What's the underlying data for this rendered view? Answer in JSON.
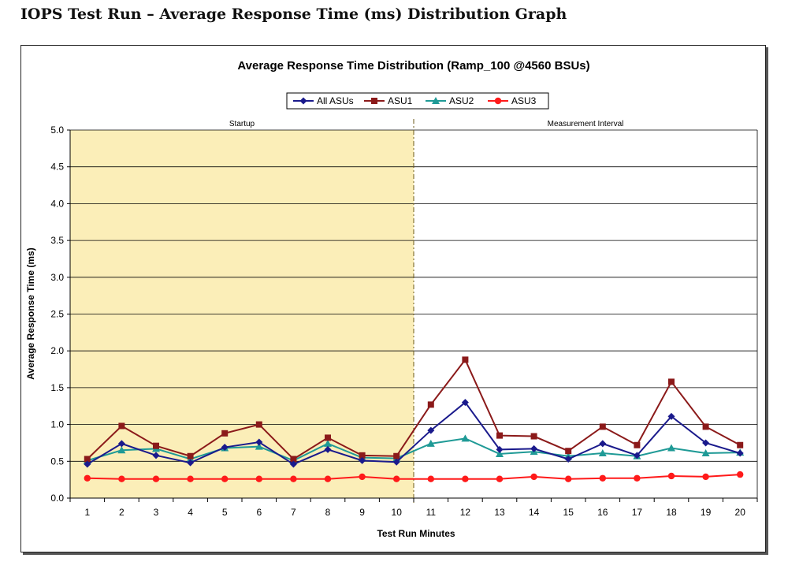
{
  "page": {
    "heading": "IOPS Test Run – Average Response Time (ms) Distribution Graph"
  },
  "chart_data": {
    "type": "line",
    "title": "Average Response Time Distribution (Ramp_100 @4560 BSUs)",
    "xlabel": "Test Run Minutes",
    "ylabel": "Average Response  Time (ms)",
    "x": [
      1,
      2,
      3,
      4,
      5,
      6,
      7,
      8,
      9,
      10,
      11,
      12,
      13,
      14,
      15,
      16,
      17,
      18,
      19,
      20
    ],
    "ylim": [
      0,
      5.0
    ],
    "yticks": [
      "0.0",
      "0.5",
      "1.0",
      "1.5",
      "2.0",
      "2.5",
      "3.0",
      "3.5",
      "4.0",
      "4.5",
      "5.0"
    ],
    "grid": true,
    "legend_position": "top-center",
    "regions": [
      {
        "label": "Startup",
        "from": 1,
        "to": 10,
        "color": "#fbeeb8"
      },
      {
        "label": "Measurement Interval",
        "from": 11,
        "to": 20,
        "color": "#ffffff"
      }
    ],
    "series": [
      {
        "name": "All ASUs",
        "color": "#1a1a8c",
        "marker": "diamond",
        "values": [
          0.46,
          0.74,
          0.58,
          0.48,
          0.69,
          0.76,
          0.46,
          0.66,
          0.51,
          0.49,
          0.92,
          1.3,
          0.66,
          0.67,
          0.53,
          0.74,
          0.58,
          1.11,
          0.75,
          0.61
        ]
      },
      {
        "name": "ASU1",
        "color": "#8b1a1a",
        "marker": "square",
        "values": [
          0.53,
          0.98,
          0.71,
          0.57,
          0.88,
          1.0,
          0.53,
          0.82,
          0.58,
          0.57,
          1.27,
          1.88,
          0.85,
          0.84,
          0.64,
          0.97,
          0.72,
          1.58,
          0.97,
          0.72
        ]
      },
      {
        "name": "ASU2",
        "color": "#1f9a96",
        "marker": "triangle",
        "values": [
          0.51,
          0.65,
          0.67,
          0.53,
          0.68,
          0.7,
          0.51,
          0.74,
          0.55,
          0.54,
          0.74,
          0.81,
          0.6,
          0.63,
          0.57,
          0.61,
          0.57,
          0.68,
          0.61,
          0.62
        ]
      },
      {
        "name": "ASU3",
        "color": "#ff1a1a",
        "marker": "circle",
        "values": [
          0.27,
          0.26,
          0.26,
          0.26,
          0.26,
          0.26,
          0.26,
          0.26,
          0.29,
          0.26,
          0.26,
          0.26,
          0.26,
          0.29,
          0.26,
          0.27,
          0.27,
          0.3,
          0.29,
          0.32
        ]
      }
    ]
  }
}
